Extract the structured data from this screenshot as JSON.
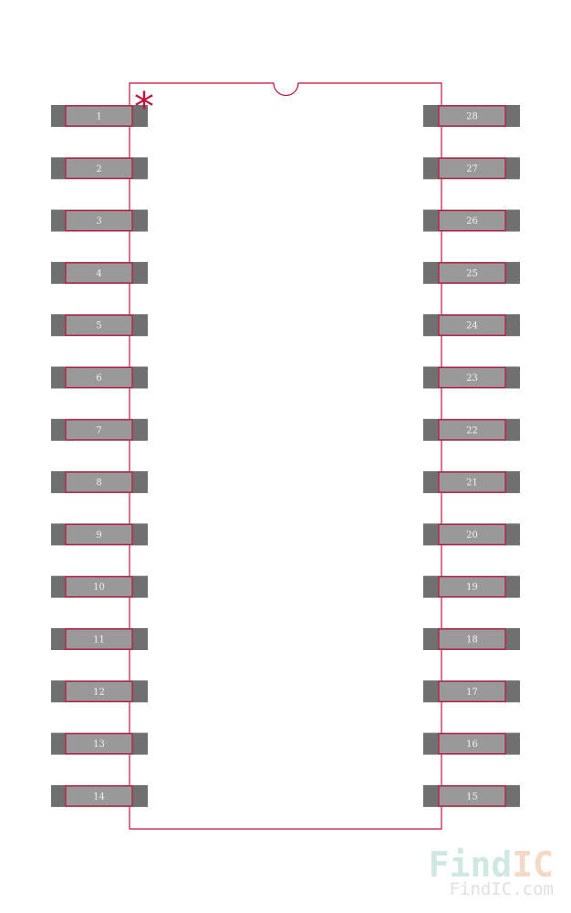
{
  "component": {
    "pin1_marker": "*",
    "left_pins": [
      "1",
      "2",
      "3",
      "4",
      "5",
      "6",
      "7",
      "8",
      "9",
      "10",
      "11",
      "12",
      "13",
      "14"
    ],
    "right_pins": [
      "28",
      "27",
      "26",
      "25",
      "24",
      "23",
      "22",
      "21",
      "20",
      "19",
      "18",
      "17",
      "16",
      "15"
    ]
  },
  "watermark": {
    "logo_main": "Find",
    "logo_accent": "IC",
    "url": "FindIC.com"
  },
  "colors": {
    "outline": "#c0143c",
    "pad_dark": "#707070",
    "pad_light": "#999999",
    "pin_text": "#f2f2f2"
  }
}
